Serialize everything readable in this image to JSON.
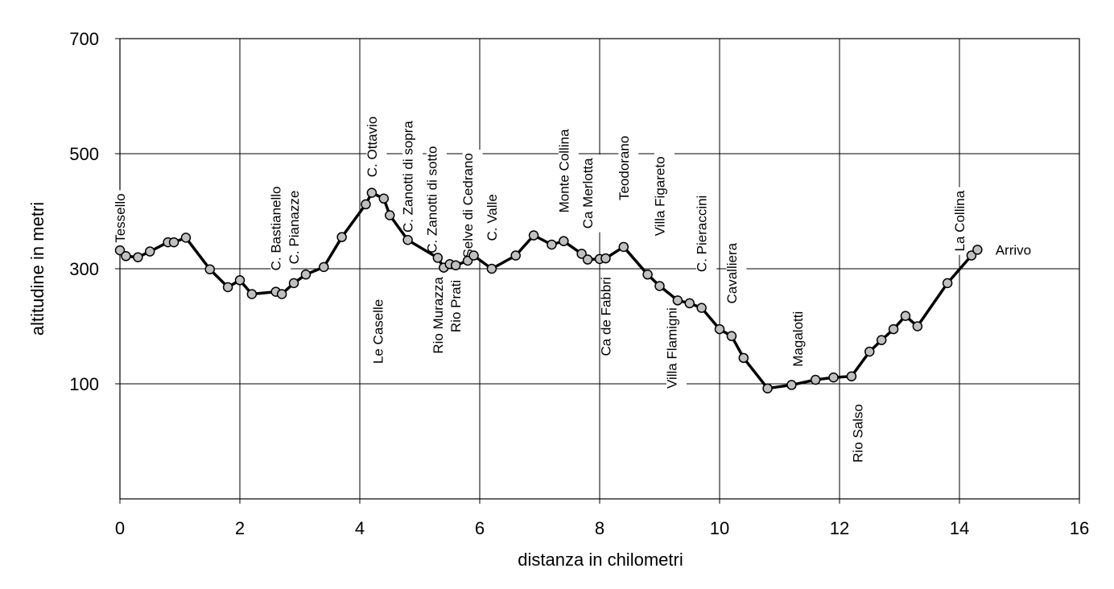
{
  "chart_data": {
    "type": "line",
    "title": "",
    "xlabel": "distanza in chilometri",
    "ylabel": "altitudine  in metri",
    "xlim": [
      0,
      16
    ],
    "ylim": [
      -100,
      700
    ],
    "xticks": [
      0,
      2,
      4,
      6,
      8,
      10,
      12,
      14,
      16
    ],
    "yticks": [
      100,
      300,
      500,
      700
    ],
    "grid": true,
    "legend": "none",
    "series": [
      {
        "points": [
          [
            0,
            332
          ],
          [
            0.1,
            322
          ],
          [
            0.3,
            320
          ],
          [
            0.5,
            330
          ],
          [
            0.8,
            346
          ],
          [
            0.9,
            346
          ],
          [
            1.1,
            354
          ],
          [
            1.5,
            299
          ],
          [
            1.8,
            268
          ],
          [
            2.0,
            280
          ],
          [
            2.2,
            256
          ],
          [
            2.6,
            260
          ],
          [
            2.7,
            256
          ],
          [
            2.9,
            275
          ],
          [
            3.1,
            290
          ],
          [
            3.4,
            303
          ],
          [
            3.7,
            355
          ],
          [
            4.1,
            412
          ],
          [
            4.2,
            432
          ],
          [
            4.4,
            422
          ],
          [
            4.5,
            393
          ],
          [
            4.8,
            350
          ],
          [
            5.3,
            319
          ],
          [
            5.4,
            302
          ],
          [
            5.5,
            308
          ],
          [
            5.6,
            306
          ],
          [
            5.8,
            314
          ],
          [
            5.9,
            323
          ],
          [
            6.2,
            300
          ],
          [
            6.6,
            323
          ],
          [
            6.9,
            358
          ],
          [
            7.2,
            342
          ],
          [
            7.4,
            348
          ],
          [
            7.7,
            326
          ],
          [
            7.8,
            316
          ],
          [
            8.0,
            317
          ],
          [
            8.1,
            318
          ],
          [
            8.4,
            338
          ],
          [
            8.8,
            290
          ],
          [
            9.0,
            270
          ],
          [
            9.3,
            245
          ],
          [
            9.5,
            240
          ],
          [
            9.7,
            232
          ],
          [
            10.0,
            195
          ],
          [
            10.2,
            183
          ],
          [
            10.4,
            145
          ],
          [
            10.8,
            92
          ],
          [
            11.2,
            98
          ],
          [
            11.6,
            107
          ],
          [
            11.9,
            111
          ],
          [
            12.2,
            113
          ],
          [
            12.5,
            156
          ],
          [
            12.7,
            176
          ],
          [
            12.9,
            195
          ],
          [
            13.1,
            218
          ],
          [
            13.3,
            200
          ],
          [
            13.8,
            275
          ],
          [
            14.2,
            323
          ],
          [
            14.3,
            333
          ]
        ]
      }
    ],
    "annotations": [
      {
        "text": "Tessello",
        "x": 0,
        "y": 388
      },
      {
        "text": "C. Bastianello",
        "x": 2.6,
        "y": 370
      },
      {
        "text": "C. Pianazze",
        "x": 2.9,
        "y": 372
      },
      {
        "text": "Le Caselle",
        "x": 4.3,
        "y": 191
      },
      {
        "text": "C. Ottavio",
        "x": 4.2,
        "y": 512
      },
      {
        "text": "C. Zanotti di sopra",
        "x": 4.8,
        "y": 460
      },
      {
        "text": "C. Zanotti di sotto",
        "x": 5.2,
        "y": 420
      },
      {
        "text": "Rio Murazza",
        "x": 5.3,
        "y": 219
      },
      {
        "text": "Rio Prati",
        "x": 5.6,
        "y": 235
      },
      {
        "text": "Selve di Cedrano",
        "x": 5.8,
        "y": 410
      },
      {
        "text": "C. Valle",
        "x": 6.2,
        "y": 389
      },
      {
        "text": "Monte Collina",
        "x": 7.4,
        "y": 470
      },
      {
        "text": "Ca Merlotta",
        "x": 7.8,
        "y": 431
      },
      {
        "text": "Ca de Fabbri",
        "x": 8.1,
        "y": 217
      },
      {
        "text": "Teodorano",
        "x": 8.4,
        "y": 475
      },
      {
        "text": "Villa Figareto",
        "x": 9.0,
        "y": 426
      },
      {
        "text": "Villa Flamigni",
        "x": 9.2,
        "y": 162
      },
      {
        "text": "C. Pieraccini",
        "x": 9.7,
        "y": 361
      },
      {
        "text": "Cavalliera",
        "x": 10.2,
        "y": 292
      },
      {
        "text": "Magalotti",
        "x": 11.3,
        "y": 178
      },
      {
        "text": "Rio Salso",
        "x": 12.3,
        "y": 14
      },
      {
        "text": "La Collina",
        "x": 14.0,
        "y": 383
      },
      {
        "text": "Arrivo",
        "x": 14.6,
        "y": 333,
        "horizontal": true
      }
    ]
  }
}
